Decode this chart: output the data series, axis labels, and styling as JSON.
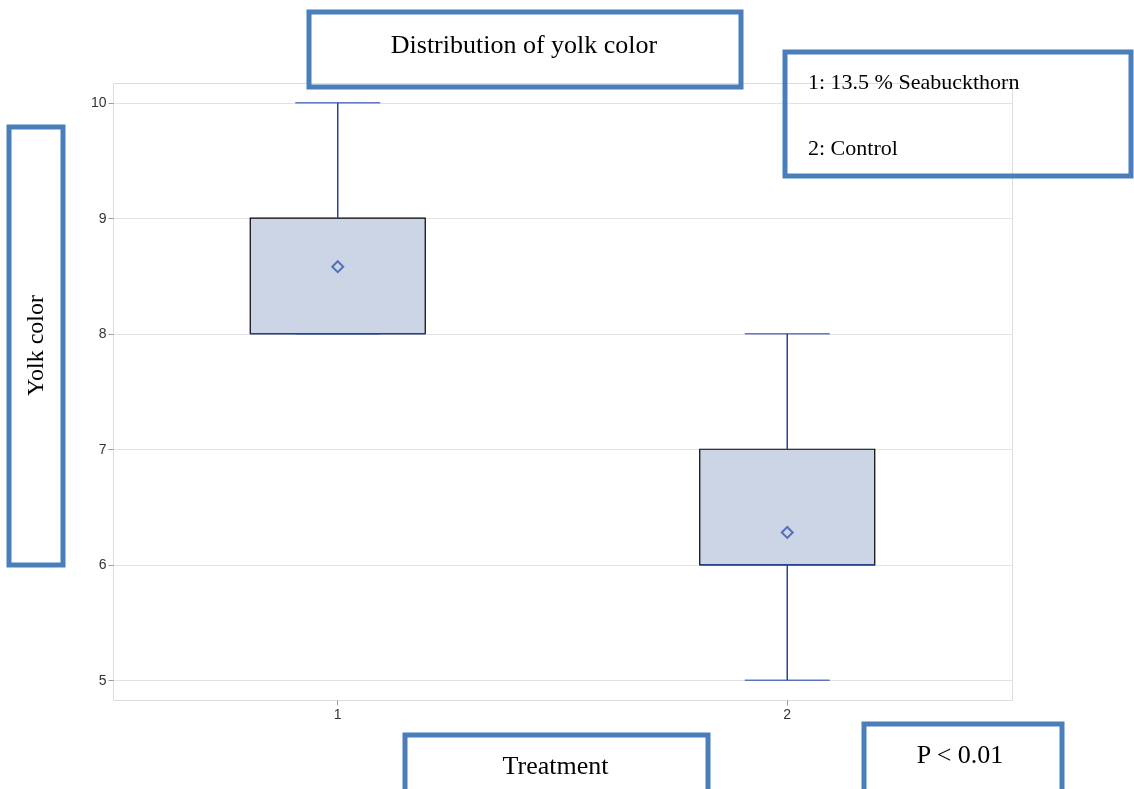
{
  "chart_data": {
    "type": "box",
    "title": "Distribution of yolk color",
    "xlabel": "Treatment",
    "ylabel": "Yolk color",
    "categories": [
      "1",
      "2"
    ],
    "boxes": [
      {
        "low": 8,
        "q1": 8,
        "median": 8,
        "q3": 9,
        "high": 10,
        "mean": 8.58
      },
      {
        "low": 5,
        "q1": 6,
        "median": 6,
        "q3": 7,
        "high": 8,
        "mean": 6.28
      }
    ],
    "color": "#2244aa",
    "ylim": [
      4.83,
      10.17
    ],
    "yticks": [
      5,
      6,
      7,
      8,
      9,
      10
    ],
    "grid": "y",
    "marker": "diamond",
    "annotations": [
      "1: 13.5 % Seabuckthorn",
      "2: Control",
      "P < 0.01"
    ]
  }
}
